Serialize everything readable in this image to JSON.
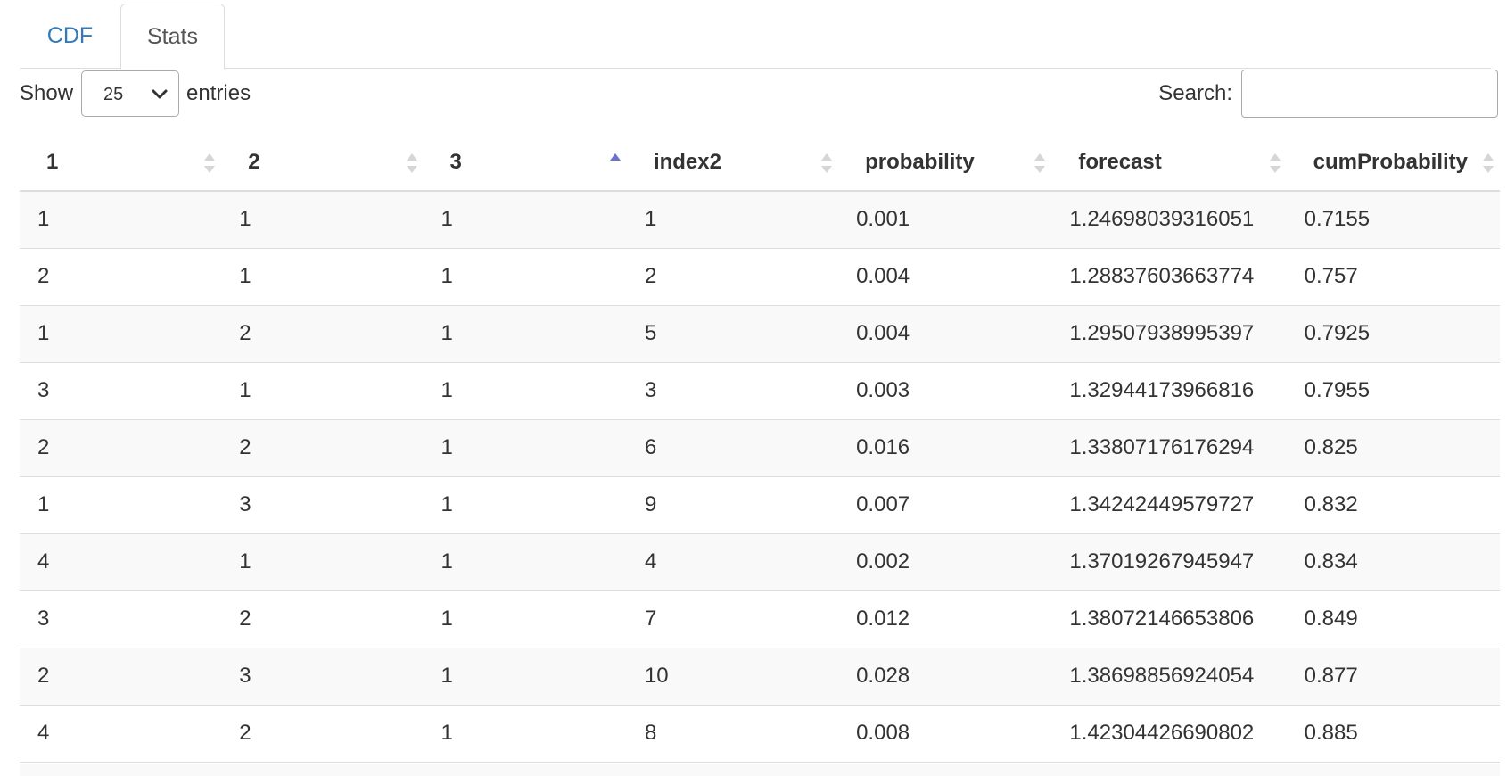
{
  "tabs": [
    {
      "label": "CDF",
      "active": false
    },
    {
      "label": "Stats",
      "active": true
    }
  ],
  "length": {
    "show_label": "Show",
    "selected": "25",
    "entries_label": "entries"
  },
  "search": {
    "label": "Search:",
    "value": "",
    "placeholder": ""
  },
  "table": {
    "columns": [
      "1",
      "2",
      "3",
      "index2",
      "probability",
      "forecast",
      "cumProbability"
    ],
    "sorted_column": "3",
    "sort_direction": "ascending",
    "rows": [
      [
        "1",
        "1",
        "1",
        "1",
        "0.001",
        "1.24698039316051",
        "0.7155"
      ],
      [
        "2",
        "1",
        "1",
        "2",
        "0.004",
        "1.28837603663774",
        "0.757"
      ],
      [
        "1",
        "2",
        "1",
        "5",
        "0.004",
        "1.29507938995397",
        "0.7925"
      ],
      [
        "3",
        "1",
        "1",
        "3",
        "0.003",
        "1.32944173966816",
        "0.7955"
      ],
      [
        "2",
        "2",
        "1",
        "6",
        "0.016",
        "1.33807176176294",
        "0.825"
      ],
      [
        "1",
        "3",
        "1",
        "9",
        "0.007",
        "1.34242449579727",
        "0.832"
      ],
      [
        "4",
        "1",
        "1",
        "4",
        "0.002",
        "1.37019267945947",
        "0.834"
      ],
      [
        "3",
        "2",
        "1",
        "7",
        "0.012",
        "1.38072146653806",
        "0.849"
      ],
      [
        "2",
        "3",
        "1",
        "10",
        "0.028",
        "1.38698856924054",
        "0.877"
      ],
      [
        "4",
        "2",
        "1",
        "8",
        "0.008",
        "1.42304426690802",
        "0.885"
      ]
    ]
  },
  "colors": {
    "tab_link": "#337ab7",
    "sort_active": "#6c72c9",
    "sort_inactive": "#d6d6d6",
    "row_stripe": "#f9f9f9",
    "border": "#dddddd"
  }
}
